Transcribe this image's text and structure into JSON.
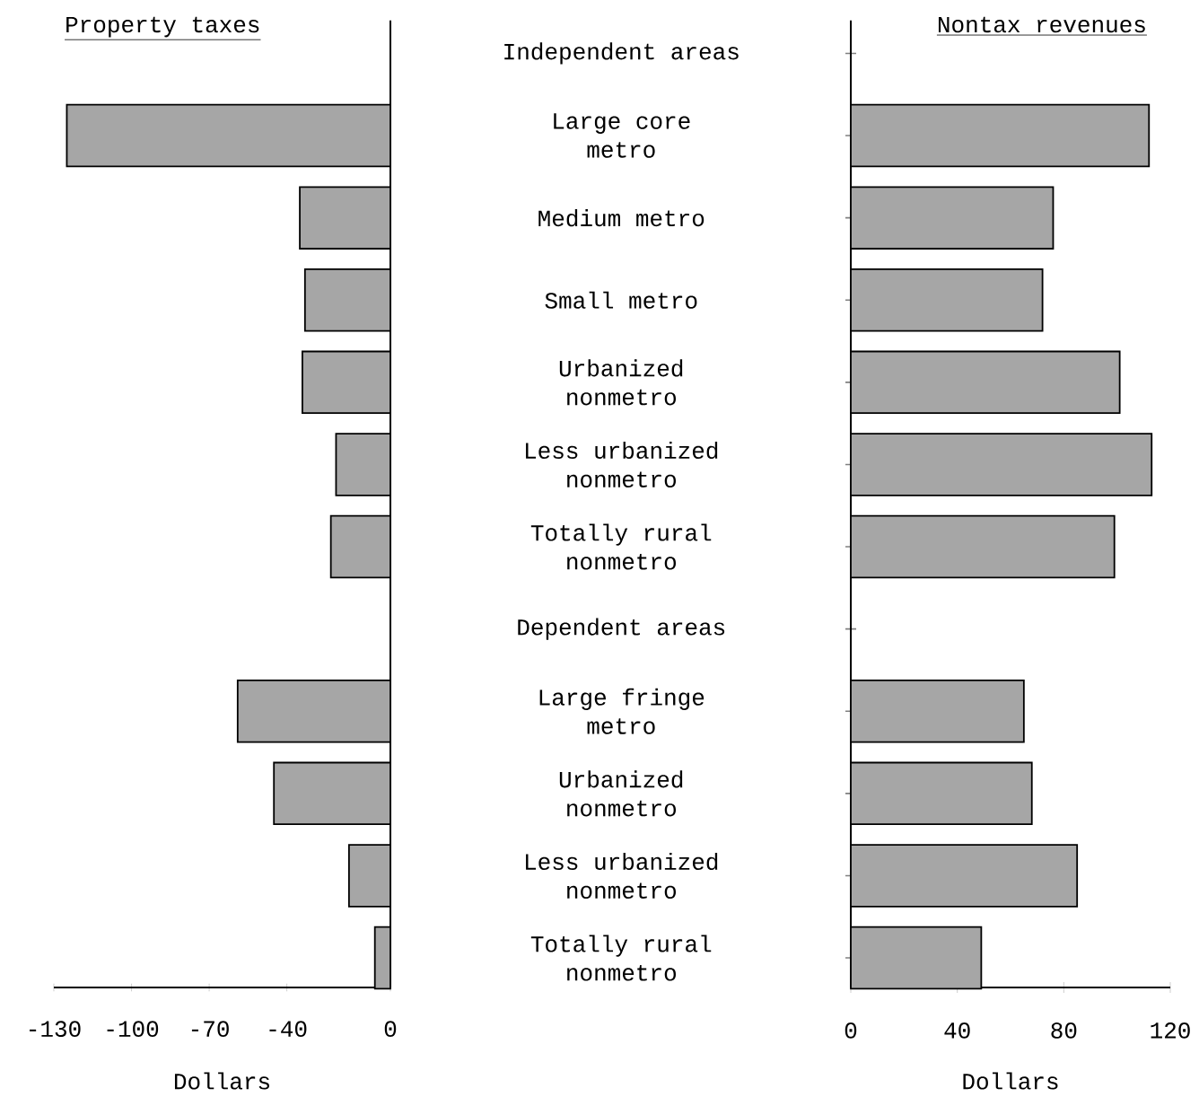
{
  "chart_data": [
    {
      "type": "bar",
      "orientation": "horizontal",
      "title": "Property taxes",
      "xlabel": "Dollars",
      "categories": [
        "Independent areas",
        "Large core metro",
        "Medium metro",
        "Small metro",
        "Urbanized nonmetro",
        "Less urbanized nonmetro",
        "Totally rural nonmetro",
        "Dependent areas",
        "Large fringe metro",
        "Urbanized nonmetro",
        "Less urbanized nonmetro",
        "Totally rural nonmetro"
      ],
      "values": [
        null,
        -125,
        -35,
        -33,
        -34,
        -21,
        -23,
        null,
        -59,
        -45,
        -16,
        -6
      ],
      "color": "#a6a6a6",
      "xlim": [
        -130,
        0
      ],
      "xticks": [
        -130,
        -100,
        -70,
        -40,
        0
      ]
    },
    {
      "type": "bar",
      "orientation": "horizontal",
      "title": "Nontax revenues",
      "xlabel": "Dollars",
      "categories": [
        null,
        null,
        null,
        null,
        null,
        null,
        null,
        null,
        null,
        null,
        null,
        null
      ],
      "values": [
        null,
        112,
        76,
        72,
        101,
        113,
        99,
        null,
        65,
        68,
        85,
        49
      ],
      "color": "#a6a6a6",
      "xlim": [
        0,
        120
      ],
      "xticks": [
        0,
        40,
        80,
        120
      ],
      "tick_labels": "x"
    }
  ]
}
